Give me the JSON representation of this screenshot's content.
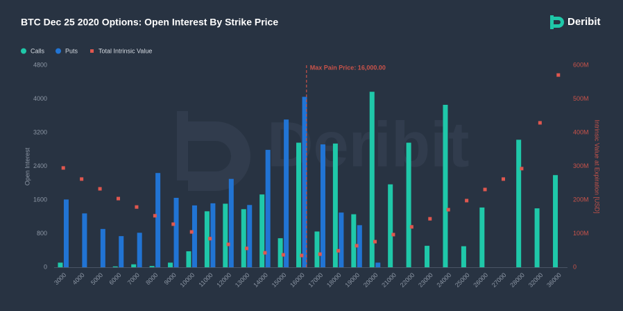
{
  "chart_data": {
    "type": "bar",
    "title": "BTC Dec 25 2020 Options: Open Interest By Strike Price",
    "logo": "Deribit",
    "y_label": "Open Interest",
    "y2_label": "Intrinsic Value at Expiration [USD]",
    "categories": [
      "3000",
      "4000",
      "5000",
      "6000",
      "7000",
      "8000",
      "9000",
      "10000",
      "11000",
      "12000",
      "13000",
      "14000",
      "15000",
      "16000",
      "17000",
      "18000",
      "19000",
      "20000",
      "21000",
      "22000",
      "23000",
      "24000",
      "25000",
      "26000",
      "27000",
      "28000",
      "32000",
      "36000"
    ],
    "series": [
      {
        "name": "Calls",
        "color": "#1fc8a9",
        "values": [
          110,
          0,
          0,
          20,
          70,
          30,
          110,
          380,
          1330,
          1510,
          1380,
          1730,
          690,
          2960,
          850,
          2940,
          1260,
          4170,
          1970,
          2960,
          510,
          3860,
          500,
          1420,
          0,
          3030,
          1400,
          2190
        ]
      },
      {
        "name": "Puts",
        "color": "#2174d4",
        "values": [
          1610,
          1280,
          910,
          740,
          820,
          2240,
          1650,
          1470,
          1520,
          2100,
          1480,
          2790,
          3510,
          4050,
          2920,
          1300,
          1000,
          110,
          0,
          0,
          0,
          0,
          0,
          0,
          0,
          0,
          0,
          0
        ]
      },
      {
        "name": "Total Intrinsic Value",
        "type": "scatter",
        "axis": "y2",
        "color": "#e0574f",
        "values": [
          295,
          262,
          233,
          204,
          179,
          153,
          128,
          105,
          85,
          68,
          56,
          43,
          37,
          35,
          39,
          49,
          64,
          76,
          97,
          120,
          144,
          171,
          198,
          231,
          262,
          293,
          429,
          571
        ]
      }
    ],
    "ylim": [
      0,
      4800
    ],
    "yticks": [
      0,
      800,
      1600,
      2400,
      3200,
      4000,
      4800
    ],
    "y2lim": [
      0,
      600
    ],
    "y2ticks": [
      0,
      {
        "value": 100,
        "label": "100M"
      },
      {
        "value": 200,
        "label": "200M"
      },
      {
        "value": 300,
        "label": "300M"
      },
      {
        "value": 400,
        "label": "400M"
      },
      {
        "value": 500,
        "label": "500M"
      },
      {
        "value": 600,
        "label": "600M"
      }
    ],
    "annotation": {
      "text": "Max Pain Price: 16,000.00",
      "x": "16000",
      "color": "#c9534a"
    },
    "grid": false,
    "legend": "top-left"
  }
}
